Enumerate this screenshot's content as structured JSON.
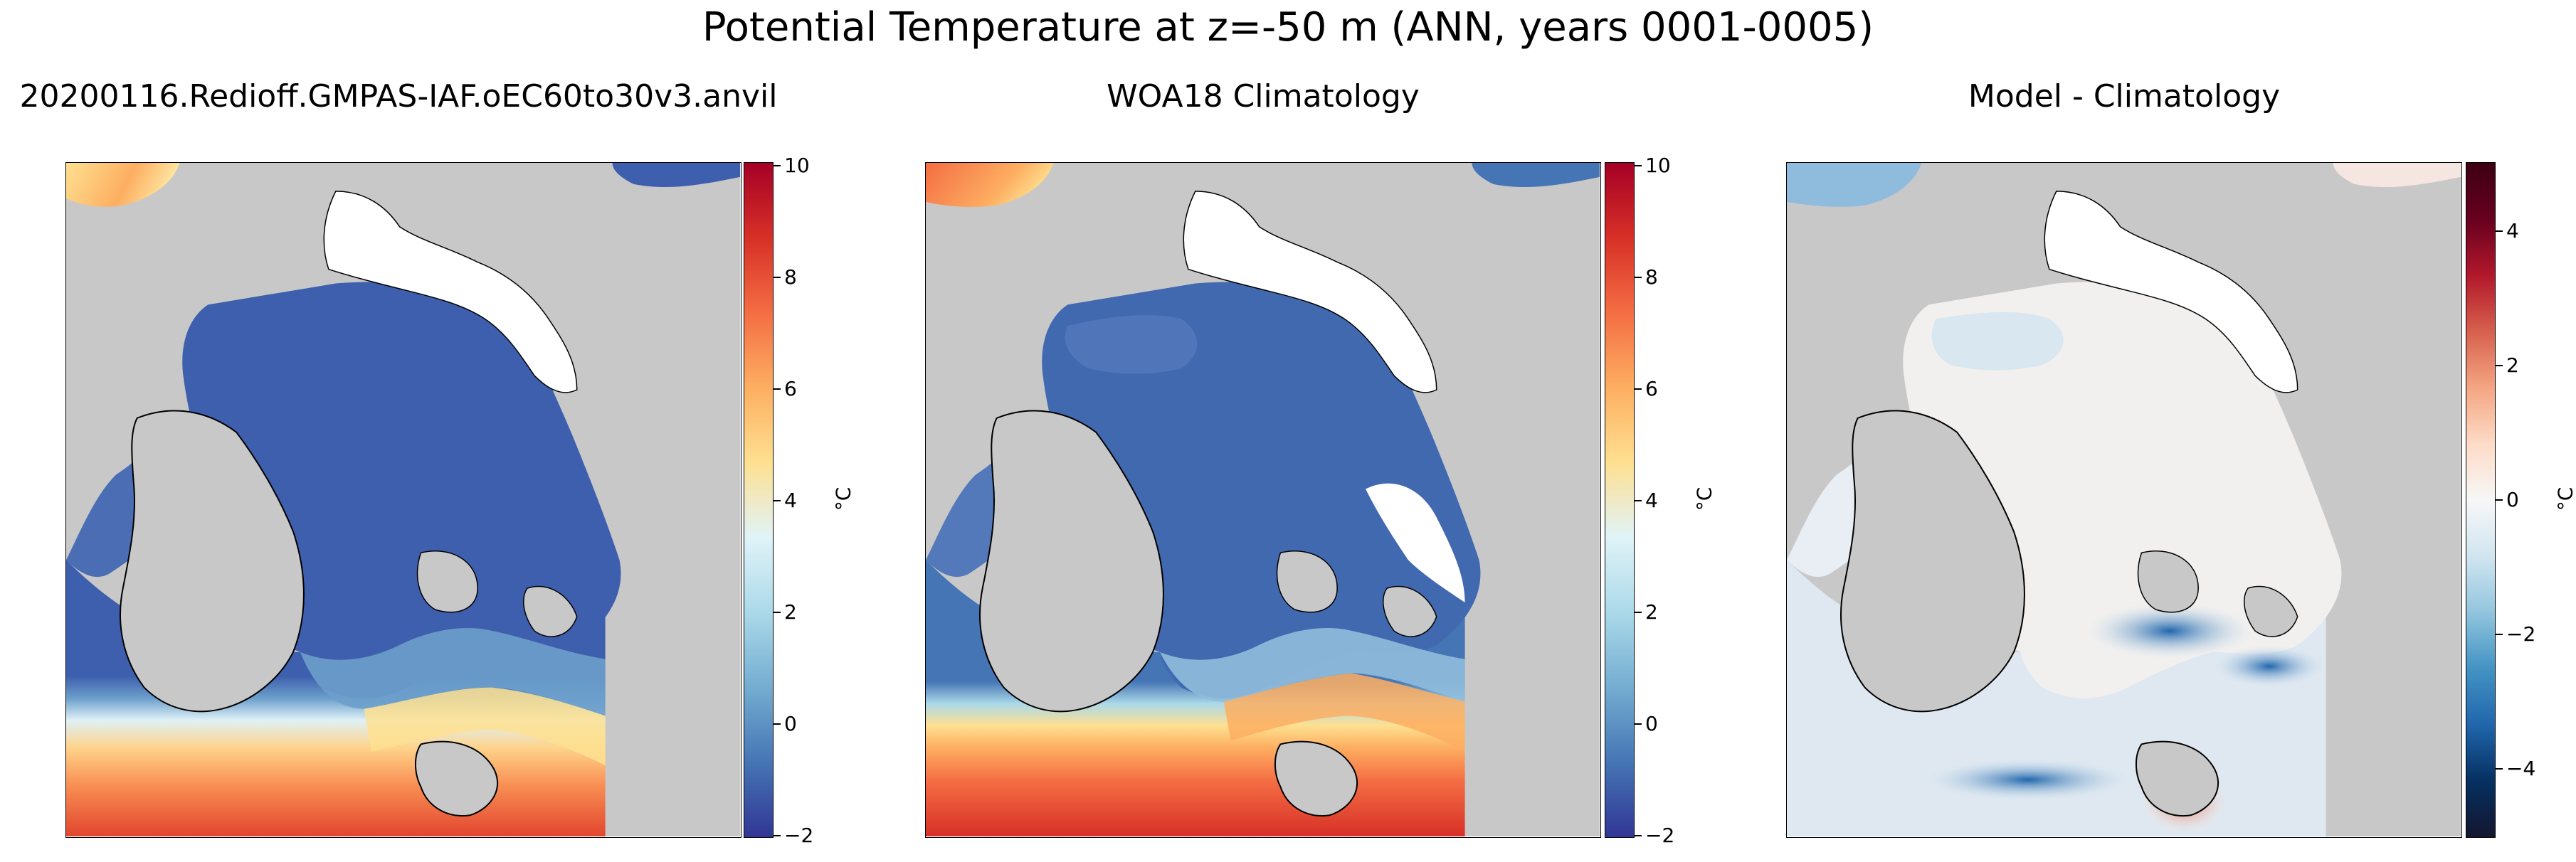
{
  "figure": {
    "title": "Potential Temperature at z=-50 m (ANN, years 0001-0005)"
  },
  "panels": [
    {
      "title": "20200116.Redioff.GMPAS-IAF.oEC60to30v3.anvil",
      "colormap": "RdYlBu_r",
      "colorbar": {
        "ticks": [
          "10",
          "8",
          "6",
          "4",
          "2",
          "0",
          "−2"
        ],
        "label": "°C"
      }
    },
    {
      "title": "WOA18 Climatology",
      "colormap": "RdYlBu_r",
      "colorbar": {
        "ticks": [
          "10",
          "8",
          "6",
          "4",
          "2",
          "0",
          "−2"
        ],
        "label": "°C"
      }
    },
    {
      "title": "Model - Climatology",
      "colormap": "RdBu_r",
      "colorbar": {
        "ticks": [
          "4",
          "2",
          "0",
          "−2",
          "−4"
        ],
        "label": "°C"
      }
    }
  ],
  "colors": {
    "land": "#c8c8c8",
    "no_data": "#ffffff",
    "cold": "#3b56a8",
    "warm": "#e8603c",
    "diff_neutral": "#f2f0ef"
  }
}
